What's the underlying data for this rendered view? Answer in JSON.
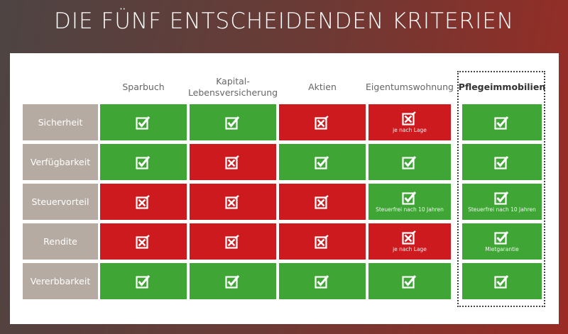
{
  "title": "DIE FÜNF ENTSCHEIDENDEN KRITERIEN",
  "colors": {
    "yes": "#3fa535",
    "no": "#cc1a1f",
    "label": "#b5aba2"
  },
  "columns": [
    "Sparbuch",
    "Kapital-\nLebensversicherung",
    "Aktien",
    "Eigentumswohnung",
    "Pflegeimmobilien"
  ],
  "rows": [
    {
      "label": "Sicherheit",
      "cells": [
        {
          "v": "check"
        },
        {
          "v": "check"
        },
        {
          "v": "cross"
        },
        {
          "v": "cross",
          "note": "je nach Lage"
        },
        {
          "v": "check"
        }
      ]
    },
    {
      "label": "Verfügbarkeit",
      "cells": [
        {
          "v": "check"
        },
        {
          "v": "cross"
        },
        {
          "v": "check"
        },
        {
          "v": "check"
        },
        {
          "v": "check"
        }
      ]
    },
    {
      "label": "Steuervorteil",
      "cells": [
        {
          "v": "cross"
        },
        {
          "v": "cross"
        },
        {
          "v": "cross"
        },
        {
          "v": "check",
          "note": "Steuerfrei nach 10 Jahren"
        },
        {
          "v": "check",
          "note": "Steuerfrei nach 10 Jahren"
        }
      ]
    },
    {
      "label": "Rendite",
      "cells": [
        {
          "v": "cross"
        },
        {
          "v": "cross"
        },
        {
          "v": "cross"
        },
        {
          "v": "cross",
          "note": "je nach Lage"
        },
        {
          "v": "check",
          "note": "Mietgarantie"
        }
      ]
    },
    {
      "label": "Vererbbarkeit",
      "cells": [
        {
          "v": "check"
        },
        {
          "v": "check"
        },
        {
          "v": "check"
        },
        {
          "v": "check"
        },
        {
          "v": "check"
        }
      ]
    }
  ]
}
